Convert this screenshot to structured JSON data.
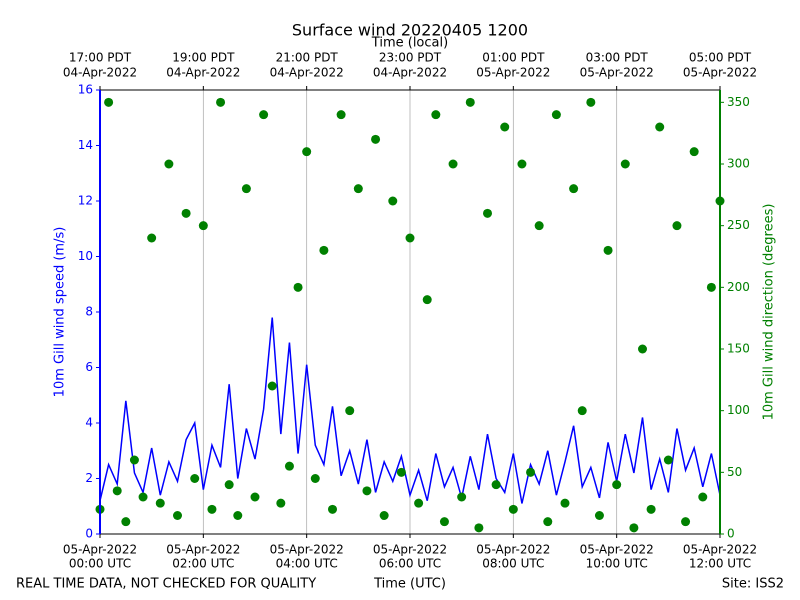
{
  "chart_data": {
    "type": "line",
    "title": "Surface wind 20220405 1200",
    "xlabel": "Time (UTC)",
    "x2label": "Time (local)",
    "ylabel": "10m Gill wind speed (m/s)",
    "y2label": "10m Gill wind direction (degrees)",
    "annotations": [
      "REAL TIME DATA, NOT CHECKED FOR QUALITY",
      "Site: ISS2"
    ],
    "xlim": [
      "2022-04-05 00:00",
      "2022-04-05 12:00"
    ],
    "xticks": [
      {
        "value": "2022-04-05 00:00",
        "label": [
          "05-Apr-2022",
          "00:00 UTC"
        ]
      },
      {
        "value": "2022-04-05 02:00",
        "label": [
          "05-Apr-2022",
          "02:00 UTC"
        ]
      },
      {
        "value": "2022-04-05 04:00",
        "label": [
          "05-Apr-2022",
          "04:00 UTC"
        ]
      },
      {
        "value": "2022-04-05 06:00",
        "label": [
          "05-Apr-2022",
          "06:00 UTC"
        ]
      },
      {
        "value": "2022-04-05 08:00",
        "label": [
          "05-Apr-2022",
          "08:00 UTC"
        ]
      },
      {
        "value": "2022-04-05 10:00",
        "label": [
          "05-Apr-2022",
          "10:00 UTC"
        ]
      },
      {
        "value": "2022-04-05 12:00",
        "label": [
          "05-Apr-2022",
          "12:00 UTC"
        ]
      }
    ],
    "x2ticks": [
      {
        "value": "2022-04-05 00:00",
        "label": [
          "17:00 PDT",
          "04-Apr-2022"
        ]
      },
      {
        "value": "2022-04-05 02:00",
        "label": [
          "19:00 PDT",
          "04-Apr-2022"
        ]
      },
      {
        "value": "2022-04-05 04:00",
        "label": [
          "21:00 PDT",
          "04-Apr-2022"
        ]
      },
      {
        "value": "2022-04-05 06:00",
        "label": [
          "23:00 PDT",
          "04-Apr-2022"
        ]
      },
      {
        "value": "2022-04-05 08:00",
        "label": [
          "01:00 PDT",
          "05-Apr-2022"
        ]
      },
      {
        "value": "2022-04-05 10:00",
        "label": [
          "03:00 PDT",
          "05-Apr-2022"
        ]
      },
      {
        "value": "2022-04-05 12:00",
        "label": [
          "05:00 PDT",
          "05-Apr-2022"
        ]
      }
    ],
    "ylim": [
      0,
      16
    ],
    "yticks": [
      0,
      2,
      4,
      6,
      8,
      10,
      12,
      14,
      16
    ],
    "y2lim": [
      0,
      360
    ],
    "y2ticks": [
      0,
      50,
      100,
      150,
      200,
      250,
      300,
      350
    ],
    "grid": "x",
    "x": [
      "2022-04-05 00:00",
      "2022-04-05 00:10",
      "2022-04-05 00:20",
      "2022-04-05 00:30",
      "2022-04-05 00:40",
      "2022-04-05 00:50",
      "2022-04-05 01:00",
      "2022-04-05 01:10",
      "2022-04-05 01:20",
      "2022-04-05 01:30",
      "2022-04-05 01:40",
      "2022-04-05 01:50",
      "2022-04-05 02:00",
      "2022-04-05 02:10",
      "2022-04-05 02:20",
      "2022-04-05 02:30",
      "2022-04-05 02:40",
      "2022-04-05 02:50",
      "2022-04-05 03:00",
      "2022-04-05 03:10",
      "2022-04-05 03:20",
      "2022-04-05 03:30",
      "2022-04-05 03:40",
      "2022-04-05 03:50",
      "2022-04-05 04:00",
      "2022-04-05 04:10",
      "2022-04-05 04:20",
      "2022-04-05 04:30",
      "2022-04-05 04:40",
      "2022-04-05 04:50",
      "2022-04-05 05:00",
      "2022-04-05 05:10",
      "2022-04-05 05:20",
      "2022-04-05 05:30",
      "2022-04-05 05:40",
      "2022-04-05 05:50",
      "2022-04-05 06:00",
      "2022-04-05 06:10",
      "2022-04-05 06:20",
      "2022-04-05 06:30",
      "2022-04-05 06:40",
      "2022-04-05 06:50",
      "2022-04-05 07:00",
      "2022-04-05 07:10",
      "2022-04-05 07:20",
      "2022-04-05 07:30",
      "2022-04-05 07:40",
      "2022-04-05 07:50",
      "2022-04-05 08:00",
      "2022-04-05 08:10",
      "2022-04-05 08:20",
      "2022-04-05 08:30",
      "2022-04-05 08:40",
      "2022-04-05 08:50",
      "2022-04-05 09:00",
      "2022-04-05 09:10",
      "2022-04-05 09:20",
      "2022-04-05 09:30",
      "2022-04-05 09:40",
      "2022-04-05 09:50",
      "2022-04-05 10:00",
      "2022-04-05 10:10",
      "2022-04-05 10:20",
      "2022-04-05 10:30",
      "2022-04-05 10:40",
      "2022-04-05 10:50",
      "2022-04-05 11:00",
      "2022-04-05 11:10",
      "2022-04-05 11:20",
      "2022-04-05 11:30",
      "2022-04-05 11:40",
      "2022-04-05 11:50",
      "2022-04-05 12:00"
    ],
    "series": [
      {
        "type": "line",
        "axis": "y",
        "color": "#0000ff",
        "values": [
          1.2,
          2.5,
          1.8,
          4.8,
          2.2,
          1.5,
          3.1,
          1.4,
          2.6,
          1.9,
          3.4,
          4.0,
          1.6,
          3.2,
          2.4,
          5.4,
          2.0,
          3.8,
          2.7,
          4.5,
          7.8,
          3.6,
          6.9,
          2.9,
          6.1,
          3.2,
          2.5,
          4.6,
          2.1,
          3.0,
          1.8,
          3.4,
          1.5,
          2.6,
          1.9,
          2.8,
          1.4,
          2.3,
          1.2,
          2.9,
          1.7,
          2.4,
          1.3,
          2.8,
          1.6,
          3.6,
          2.0,
          1.5,
          2.9,
          1.1,
          2.5,
          1.8,
          3.0,
          1.4,
          2.6,
          3.9,
          1.7,
          2.4,
          1.3,
          3.3,
          1.9,
          3.6,
          2.2,
          4.2,
          1.6,
          2.7,
          1.5,
          3.8,
          2.3,
          3.1,
          1.7,
          2.9,
          1.4
        ]
      },
      {
        "type": "scatter",
        "axis": "y2",
        "color": "#008000",
        "values": [
          20,
          350,
          35,
          10,
          60,
          30,
          240,
          25,
          300,
          15,
          260,
          45,
          250,
          20,
          350,
          40,
          15,
          280,
          30,
          340,
          120,
          25,
          55,
          200,
          310,
          45,
          230,
          20,
          340,
          100,
          280,
          35,
          320,
          15,
          270,
          50,
          240,
          25,
          190,
          340,
          10,
          300,
          30,
          350,
          5,
          260,
          40,
          330,
          20,
          300,
          50,
          250,
          10,
          340,
          25,
          280,
          100,
          350,
          15,
          230,
          40,
          300,
          5,
          150,
          20,
          330,
          60,
          250,
          10,
          310,
          30,
          200,
          270
        ]
      }
    ]
  }
}
